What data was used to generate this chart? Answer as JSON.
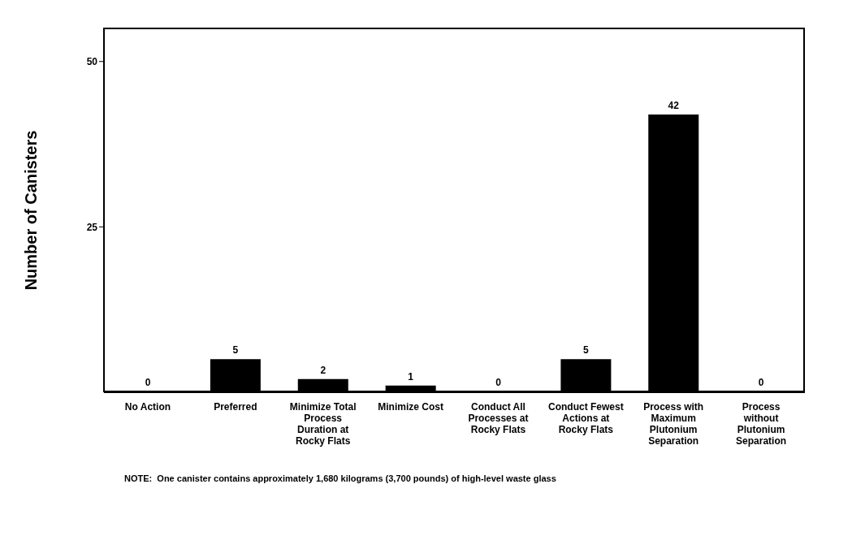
{
  "chart_data": {
    "type": "bar",
    "ylabel": "Number of Canisters",
    "categories": [
      "No Action",
      "Preferred",
      "Minimize Total Process Duration at Rocky Flats",
      "Minimize Cost",
      "Conduct All Processes at Rocky Flats",
      "Conduct Fewest Actions at Rocky Flats",
      "Process with Maximum Plutonium Separation",
      "Process without Plutonium Separation"
    ],
    "values": [
      0,
      5,
      2,
      1,
      0,
      5,
      42,
      0
    ],
    "color": "#000000",
    "data_labels": true,
    "ylim": [
      0,
      55
    ],
    "yticks": [
      25,
      50
    ],
    "grid": false,
    "annotations": [
      "NOTE:  One canister contains approximately 1,680 kilograms (3,700 pounds) of high-level waste glass"
    ]
  }
}
